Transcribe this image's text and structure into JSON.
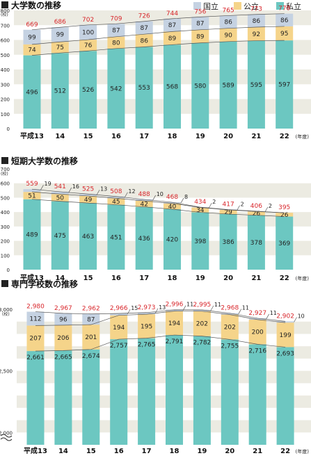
{
  "legend": [
    {
      "label": "国立",
      "color": "#c5d2e2"
    },
    {
      "label": "公立",
      "color": "#f5d48a"
    },
    {
      "label": "私立",
      "color": "#6cc7c1"
    }
  ],
  "colors": {
    "national": "#c5d2e2",
    "public": "#f5d48a",
    "private": "#6cc7c1",
    "total_label": "#d8262b",
    "band": "#ecebe2",
    "axis_text": "#222222"
  },
  "chart_data": [
    {
      "type": "bar",
      "stacked": true,
      "title": "大学数の推移",
      "y_unit": "(校)",
      "x_unit": "(年度)",
      "categories": [
        "平成13",
        "14",
        "15",
        "16",
        "17",
        "18",
        "19",
        "20",
        "21",
        "22"
      ],
      "ylim": [
        0,
        800
      ],
      "yticks": [
        0,
        100,
        200,
        300,
        400,
        500,
        600,
        700,
        800
      ],
      "series": [
        {
          "name": "私立",
          "values": [
            496,
            512,
            526,
            542,
            553,
            568,
            580,
            589,
            595,
            597
          ]
        },
        {
          "name": "公立",
          "values": [
            74,
            75,
            76,
            80,
            86,
            89,
            89,
            90,
            92,
            95
          ]
        },
        {
          "name": "国立",
          "values": [
            99,
            99,
            100,
            87,
            87,
            87,
            87,
            86,
            86,
            86
          ]
        }
      ],
      "totals": [
        669,
        686,
        702,
        709,
        726,
        744,
        756,
        765,
        773,
        778
      ]
    },
    {
      "type": "bar",
      "stacked": true,
      "title": "短期大学数の推移",
      "y_unit": "(校)",
      "x_unit": "(年度)",
      "categories": [
        "平成13",
        "14",
        "15",
        "16",
        "17",
        "18",
        "19",
        "20",
        "21",
        "22"
      ],
      "ylim": [
        0,
        700
      ],
      "yticks": [
        0,
        100,
        200,
        300,
        400,
        500,
        600,
        700
      ],
      "series": [
        {
          "name": "私立",
          "values": [
            489,
            475,
            463,
            451,
            436,
            420,
            398,
            386,
            378,
            369
          ]
        },
        {
          "name": "公立",
          "values": [
            51,
            50,
            49,
            45,
            42,
            40,
            34,
            29,
            26,
            26
          ]
        },
        {
          "name": "国立",
          "values": [
            19,
            16,
            13,
            12,
            10,
            8,
            2,
            2,
            2,
            0
          ]
        }
      ],
      "totals": [
        559,
        541,
        525,
        508,
        488,
        468,
        434,
        417,
        406,
        395
      ]
    },
    {
      "type": "bar",
      "stacked": true,
      "title": "専門学校数の推移",
      "y_unit": "(校)",
      "x_unit": "(年度)",
      "categories": [
        "平成13",
        "14",
        "15",
        "16",
        "17",
        "18",
        "19",
        "20",
        "21",
        "22"
      ],
      "ylim": [
        1900,
        3000
      ],
      "axis_break": true,
      "yticks": [
        2000,
        2500,
        3000
      ],
      "ytick_labels": [
        "2,000",
        "2,500",
        "3,000"
      ],
      "series": [
        {
          "name": "私立",
          "values": [
            2661,
            2665,
            2674,
            2757,
            2765,
            2791,
            2782,
            2755,
            2716,
            2693
          ]
        },
        {
          "name": "公立",
          "values": [
            207,
            206,
            201,
            194,
            195,
            194,
            202,
            202,
            200,
            199
          ]
        },
        {
          "name": "国立",
          "values": [
            112,
            96,
            87,
            15,
            13,
            11,
            11,
            11,
            11,
            10
          ]
        }
      ],
      "value_labels": {
        "私立": [
          "2,661",
          "2,665",
          "2,674",
          "2,757",
          "2,765",
          "2,791",
          "2,782",
          "2,755",
          "2,716",
          "2,693"
        ],
        "公立": [
          "207",
          "206",
          "201",
          "194",
          "195",
          "194",
          "202",
          "202",
          "200",
          "199"
        ],
        "国立": [
          "112",
          "96",
          "87",
          "15",
          "13",
          "11",
          "11",
          "11",
          "11",
          "10"
        ]
      },
      "totals": [
        2980,
        2967,
        2962,
        2966,
        2973,
        2996,
        2995,
        2968,
        2927,
        2902
      ],
      "total_labels": [
        "2,980",
        "2,967",
        "2,962",
        "2,966",
        "2,973",
        "2,996",
        "2,995",
        "2,968",
        "2,927",
        "2,902"
      ]
    }
  ]
}
